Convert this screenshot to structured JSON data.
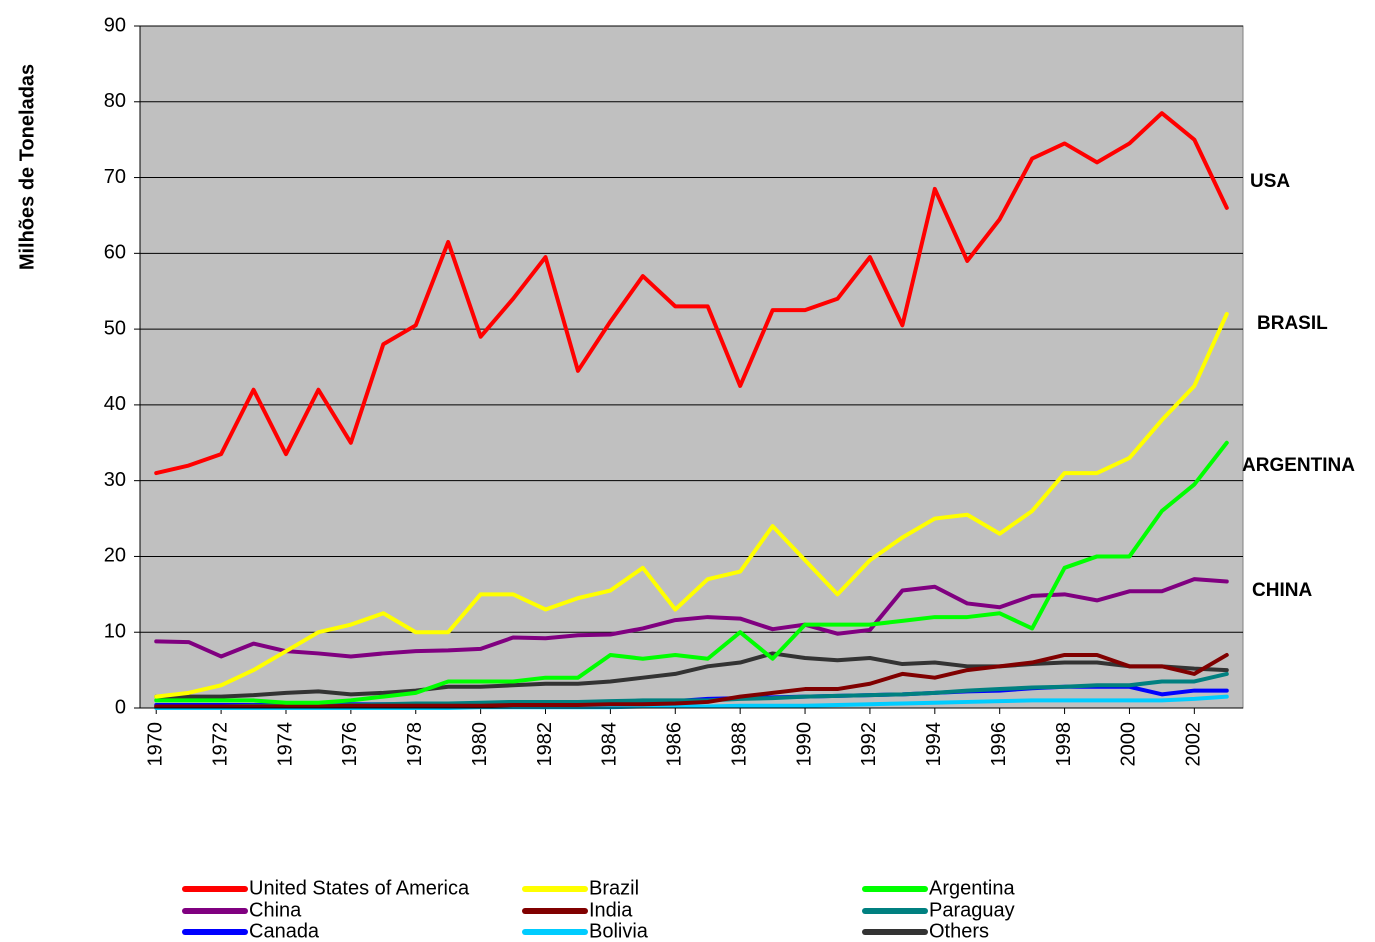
{
  "chart_data": {
    "type": "line",
    "ylabel": "Milhões de Toneladas",
    "x": [
      1970,
      1971,
      1972,
      1973,
      1974,
      1975,
      1976,
      1977,
      1978,
      1979,
      1980,
      1981,
      1982,
      1983,
      1984,
      1985,
      1986,
      1987,
      1988,
      1989,
      1990,
      1991,
      1992,
      1993,
      1994,
      1995,
      1996,
      1997,
      1998,
      1999,
      2000,
      2001,
      2002,
      2003
    ],
    "xlim": [
      1969.5,
      2003.5
    ],
    "xticks": [
      1970,
      1972,
      1974,
      1976,
      1978,
      1980,
      1982,
      1984,
      1986,
      1988,
      1990,
      1992,
      1994,
      1996,
      1998,
      2000,
      2002
    ],
    "ylim": [
      0,
      90
    ],
    "yticks": [
      0,
      10,
      20,
      30,
      40,
      50,
      60,
      70,
      80,
      90
    ],
    "grid": true,
    "annotations": [
      "USA",
      "BRASIL",
      "ARGENTINA",
      "CHINA"
    ],
    "series": [
      {
        "name": "United States of America",
        "color": "#ff0000",
        "values": [
          31,
          32,
          33.5,
          42,
          33.5,
          42,
          35,
          48,
          50.5,
          61.5,
          49,
          54,
          59.5,
          44.5,
          51,
          57,
          53,
          53,
          42.5,
          52.5,
          52.5,
          54,
          59.5,
          50.5,
          68.5,
          59,
          64.5,
          72.5,
          74.5,
          72,
          74.5,
          78.5,
          75,
          66
        ]
      },
      {
        "name": "Brazil",
        "color": "#ffff00",
        "values": [
          1.5,
          2,
          3,
          5,
          7.5,
          10,
          11,
          12.5,
          10,
          10,
          15,
          15,
          13,
          14.5,
          15.5,
          18.5,
          13,
          17,
          18,
          24,
          19.5,
          15,
          19.5,
          22.5,
          25,
          25.5,
          23,
          26,
          31,
          31,
          33,
          38,
          42.5,
          52
        ]
      },
      {
        "name": "Argentina",
        "color": "#00ff00",
        "values": [
          1,
          1,
          1,
          1,
          0.7,
          0.7,
          1,
          1.5,
          2,
          3.5,
          3.5,
          3.5,
          4,
          4,
          7,
          6.5,
          7,
          6.5,
          10,
          6.5,
          11,
          11,
          11,
          11.5,
          12,
          12,
          12.5,
          10.5,
          18.5,
          20,
          20,
          26,
          29.5,
          35
        ]
      },
      {
        "name": "China",
        "color": "#800080",
        "values": [
          8.8,
          8.7,
          6.8,
          8.5,
          7.5,
          7.2,
          6.8,
          7.2,
          7.5,
          7.6,
          7.8,
          9.3,
          9.2,
          9.6,
          9.7,
          10.5,
          11.6,
          12,
          11.8,
          10.4,
          11,
          9.8,
          10.3,
          15.5,
          16,
          13.8,
          13.3,
          14.8,
          15,
          14.2,
          15.4,
          15.4,
          17,
          16.7
        ]
      },
      {
        "name": "India",
        "color": "#800000",
        "values": [
          0.2,
          0.2,
          0.2,
          0.2,
          0.2,
          0.2,
          0.3,
          0.3,
          0.3,
          0.3,
          0.3,
          0.4,
          0.4,
          0.4,
          0.5,
          0.5,
          0.6,
          0.8,
          1.5,
          2,
          2.5,
          2.5,
          3.2,
          4.5,
          4,
          5,
          5.5,
          6,
          7,
          7,
          5.5,
          5.5,
          4.5,
          7
        ]
      },
      {
        "name": "Paraguay",
        "color": "#008080",
        "values": [
          0.2,
          0.2,
          0.2,
          0.3,
          0.3,
          0.3,
          0.4,
          0.5,
          0.6,
          0.6,
          0.7,
          0.8,
          0.8,
          0.8,
          0.9,
          1,
          1,
          1,
          1.2,
          1.3,
          1.5,
          1.6,
          1.7,
          1.8,
          2,
          2.3,
          2.5,
          2.7,
          2.8,
          3,
          3,
          3.5,
          3.5,
          4.5
        ]
      },
      {
        "name": "Canada",
        "color": "#0000ff",
        "values": [
          0.4,
          0.4,
          0.4,
          0.4,
          0.4,
          0.4,
          0.5,
          0.5,
          0.5,
          0.5,
          0.6,
          0.6,
          0.7,
          0.7,
          0.8,
          0.8,
          0.9,
          1.2,
          1.3,
          1.4,
          1.5,
          1.6,
          1.7,
          1.8,
          2,
          2.2,
          2.3,
          2.6,
          2.8,
          2.8,
          2.8,
          1.8,
          2.3,
          2.3
        ]
      },
      {
        "name": "Bolivia",
        "color": "#00ccff",
        "values": [
          0,
          0,
          0,
          0,
          0,
          0,
          0,
          0,
          0,
          0,
          0.1,
          0.1,
          0.1,
          0.1,
          0.1,
          0.2,
          0.2,
          0.2,
          0.3,
          0.3,
          0.3,
          0.4,
          0.5,
          0.6,
          0.7,
          0.8,
          0.9,
          1,
          1,
          1,
          1,
          1,
          1.2,
          1.5
        ]
      },
      {
        "name": "Others",
        "color": "#333333",
        "values": [
          1.5,
          1.5,
          1.5,
          1.7,
          2,
          2.2,
          1.8,
          2,
          2.3,
          2.8,
          2.8,
          3,
          3.2,
          3.2,
          3.5,
          4,
          4.5,
          5.5,
          6,
          7.2,
          6.6,
          6.3,
          6.6,
          5.8,
          6,
          5.5,
          5.5,
          5.8,
          6,
          6,
          5.5,
          5.5,
          5.2,
          5
        ]
      }
    ]
  }
}
